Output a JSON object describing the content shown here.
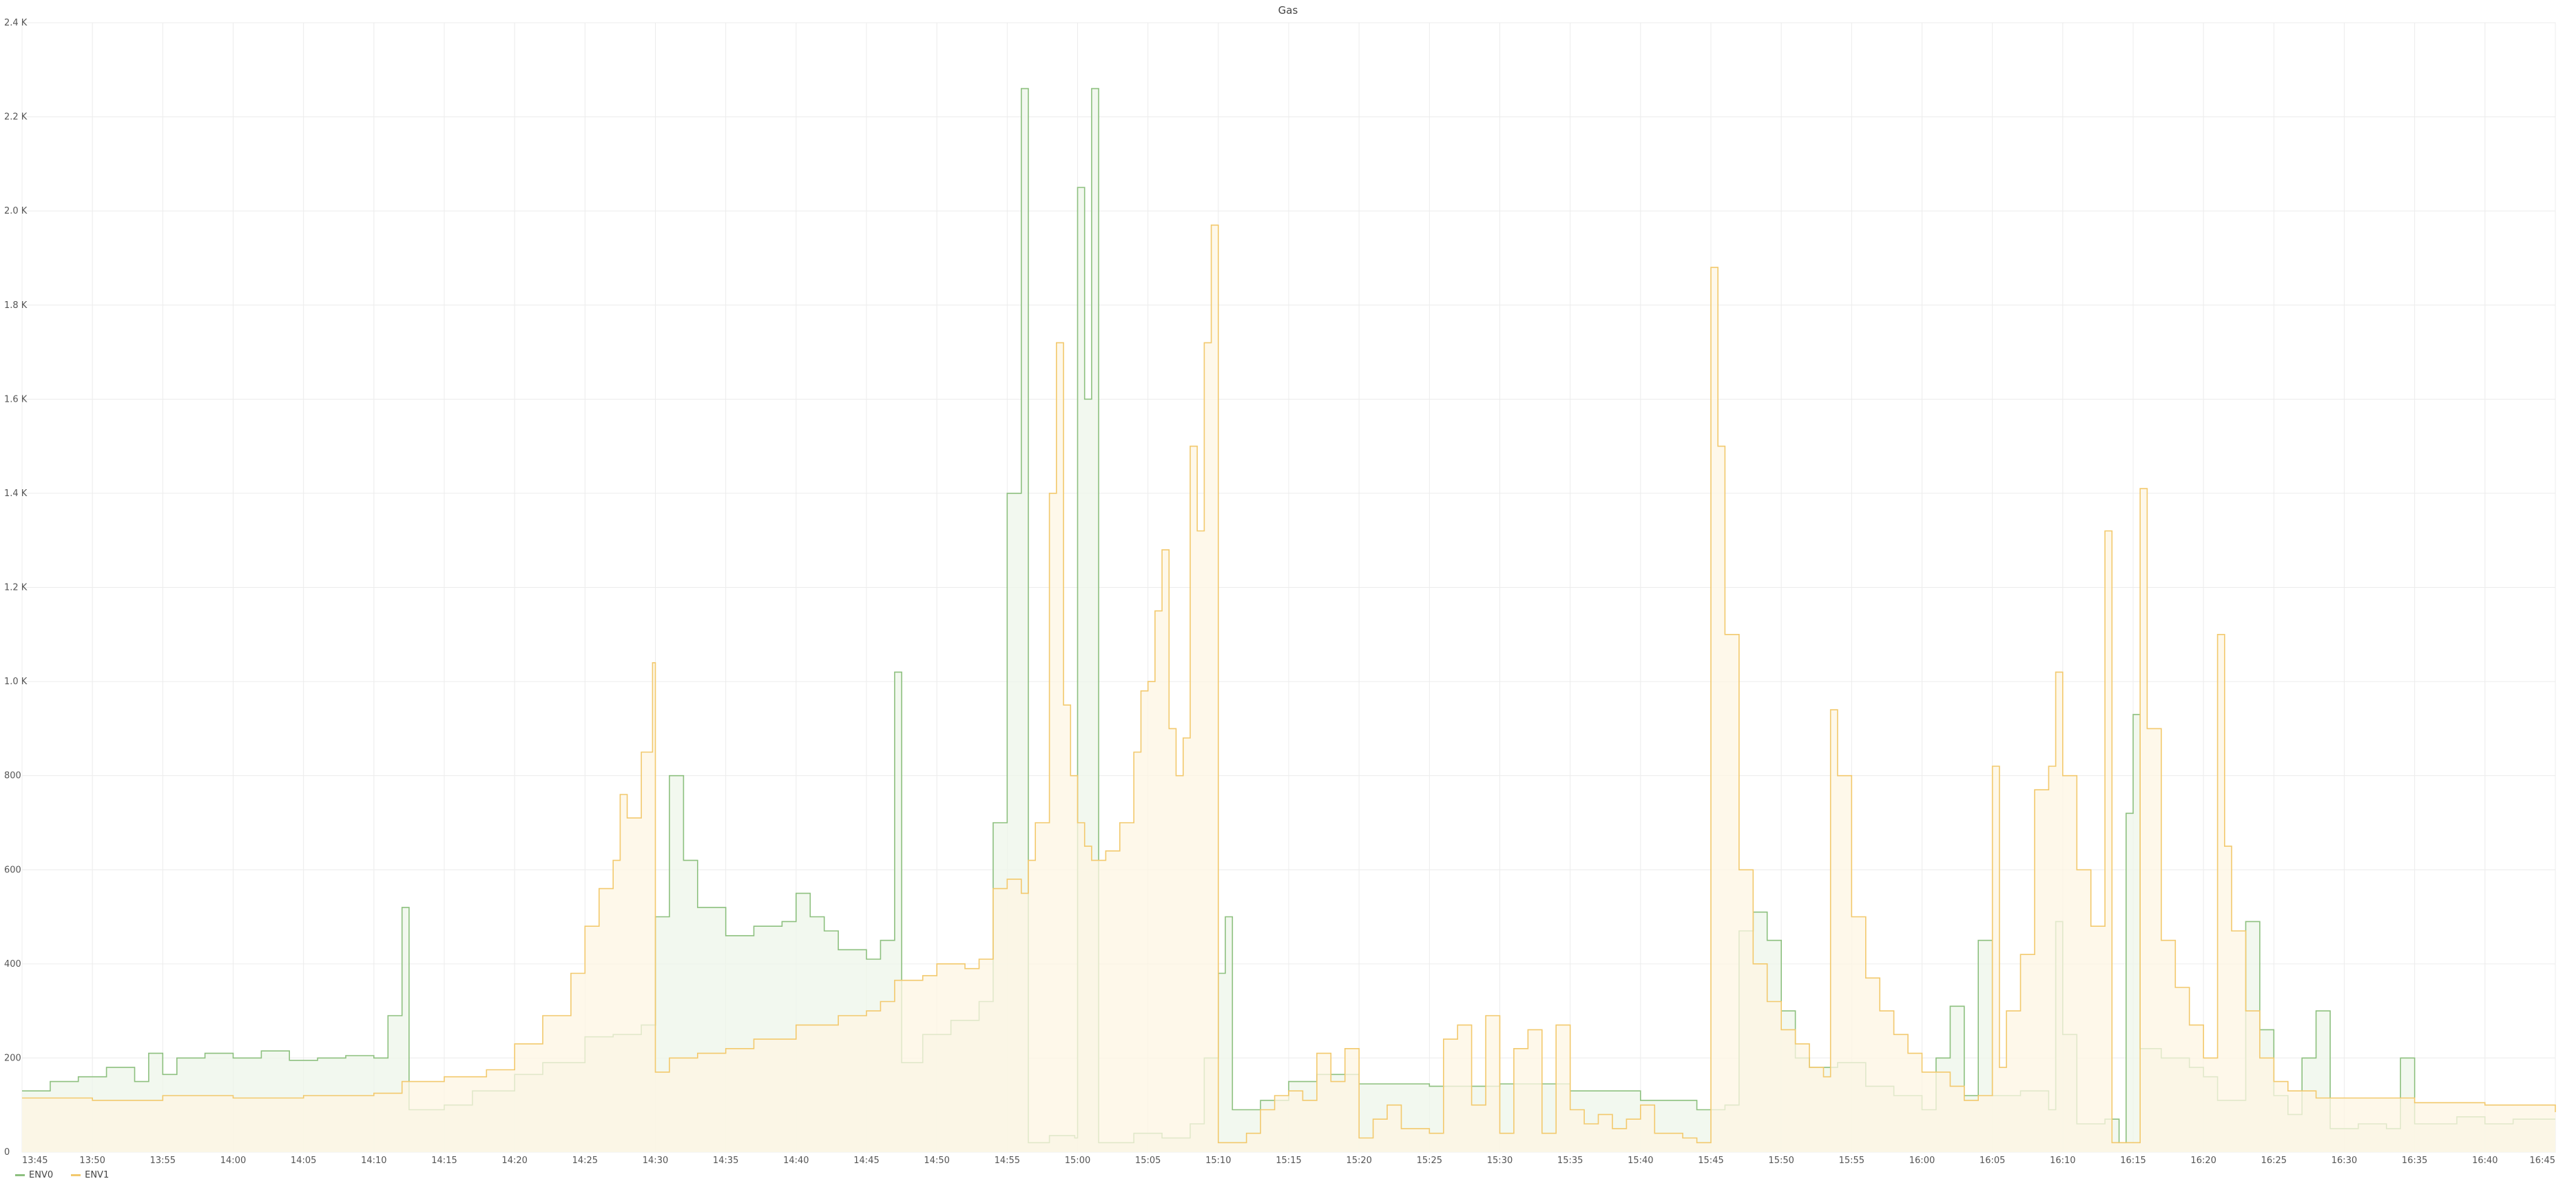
{
  "chart_data": {
    "type": "line",
    "title": "Gas",
    "xlabel": "",
    "ylabel": "",
    "ylim": [
      0,
      2400
    ],
    "yticks": [
      0,
      200,
      400,
      600,
      800,
      1000,
      1200,
      1400,
      1600,
      1800,
      2000,
      2200,
      2400
    ],
    "ytick_labels": [
      "0",
      "200",
      "400",
      "600",
      "800",
      "1.0 K",
      "1.2 K",
      "1.4 K",
      "1.6 K",
      "1.8 K",
      "2.0 K",
      "2.2 K",
      "2.4 K"
    ],
    "x_tick_labels": [
      "13:45",
      "13:50",
      "13:55",
      "14:00",
      "14:05",
      "14:10",
      "14:15",
      "14:20",
      "14:25",
      "14:30",
      "14:35",
      "14:40",
      "14:45",
      "14:50",
      "14:55",
      "15:00",
      "15:05",
      "15:10",
      "15:15",
      "15:20",
      "15:25",
      "15:30",
      "15:35",
      "15:40",
      "15:45",
      "15:50",
      "15:55",
      "16:00",
      "16:05",
      "16:10",
      "16:15",
      "16:20",
      "16:25",
      "16:30",
      "16:35",
      "16:40",
      "16:45"
    ],
    "grid": true,
    "legend_position": "bottom-left",
    "step": true,
    "series": [
      {
        "name": "ENV0",
        "color": "#8dc07f",
        "fill": "#eef5ea",
        "points": [
          [
            "13:45",
            130
          ],
          [
            "13:47",
            150
          ],
          [
            "13:49",
            160
          ],
          [
            "13:51",
            180
          ],
          [
            "13:53",
            150
          ],
          [
            "13:54",
            210
          ],
          [
            "13:55",
            165
          ],
          [
            "13:56",
            200
          ],
          [
            "13:58",
            210
          ],
          [
            "14:00",
            200
          ],
          [
            "14:02",
            215
          ],
          [
            "14:04",
            195
          ],
          [
            "14:06",
            200
          ],
          [
            "14:08",
            205
          ],
          [
            "14:10",
            200
          ],
          [
            "14:11",
            290
          ],
          [
            "14:12",
            520
          ],
          [
            "14:12.5",
            90
          ],
          [
            "14:15",
            100
          ],
          [
            "14:17",
            130
          ],
          [
            "14:20",
            165
          ],
          [
            "14:22",
            190
          ],
          [
            "14:25",
            245
          ],
          [
            "14:27",
            250
          ],
          [
            "14:29",
            270
          ],
          [
            "14:30",
            500
          ],
          [
            "14:31",
            800
          ],
          [
            "14:32",
            620
          ],
          [
            "14:33",
            520
          ],
          [
            "14:35",
            460
          ],
          [
            "14:37",
            480
          ],
          [
            "14:39",
            490
          ],
          [
            "14:40",
            550
          ],
          [
            "14:41",
            500
          ],
          [
            "14:42",
            470
          ],
          [
            "14:43",
            430
          ],
          [
            "14:45",
            410
          ],
          [
            "14:46",
            450
          ],
          [
            "14:47",
            1020
          ],
          [
            "14:47.5",
            190
          ],
          [
            "14:49",
            250
          ],
          [
            "14:51",
            280
          ],
          [
            "14:53",
            320
          ],
          [
            "14:54",
            700
          ],
          [
            "14:55",
            1400
          ],
          [
            "14:56",
            2260
          ],
          [
            "14:56.5",
            20
          ],
          [
            "14:58",
            35
          ],
          [
            "14:59.8",
            30
          ],
          [
            "15:00",
            2050
          ],
          [
            "15:00.5",
            1600
          ],
          [
            "15:01",
            2260
          ],
          [
            "15:01.5",
            20
          ],
          [
            "15:04",
            40
          ],
          [
            "15:06",
            30
          ],
          [
            "15:08",
            60
          ],
          [
            "15:09",
            200
          ],
          [
            "15:10",
            380
          ],
          [
            "15:10.5",
            500
          ],
          [
            "15:11",
            90
          ],
          [
            "15:13",
            110
          ],
          [
            "15:15",
            150
          ],
          [
            "15:17",
            165
          ],
          [
            "15:20",
            145
          ],
          [
            "15:25",
            140
          ],
          [
            "15:30",
            145
          ],
          [
            "15:35",
            130
          ],
          [
            "15:40",
            110
          ],
          [
            "15:44",
            90
          ],
          [
            "15:46",
            100
          ],
          [
            "15:47",
            470
          ],
          [
            "15:48",
            510
          ],
          [
            "15:49",
            450
          ],
          [
            "15:50",
            300
          ],
          [
            "15:51",
            200
          ],
          [
            "15:52",
            180
          ],
          [
            "15:54",
            190
          ],
          [
            "15:56",
            140
          ],
          [
            "15:58",
            120
          ],
          [
            "16:00",
            90
          ],
          [
            "16:01",
            200
          ],
          [
            "16:02",
            310
          ],
          [
            "16:03",
            120
          ],
          [
            "16:04",
            450
          ],
          [
            "16:05",
            120
          ],
          [
            "16:07",
            130
          ],
          [
            "16:09",
            90
          ],
          [
            "16:09.5",
            490
          ],
          [
            "16:10",
            250
          ],
          [
            "16:11",
            60
          ],
          [
            "16:13",
            70
          ],
          [
            "16:14",
            20
          ],
          [
            "16:14.5",
            720
          ],
          [
            "16:15",
            930
          ],
          [
            "16:15.5",
            220
          ],
          [
            "16:17",
            200
          ],
          [
            "16:19",
            180
          ],
          [
            "16:20",
            160
          ],
          [
            "16:21",
            110
          ],
          [
            "16:22",
            110
          ],
          [
            "16:23",
            490
          ],
          [
            "16:24",
            260
          ],
          [
            "16:25",
            120
          ],
          [
            "16:26",
            80
          ],
          [
            "16:27",
            200
          ],
          [
            "16:28",
            300
          ],
          [
            "16:29",
            50
          ],
          [
            "16:31",
            60
          ],
          [
            "16:33",
            50
          ],
          [
            "16:34",
            200
          ],
          [
            "16:35",
            60
          ],
          [
            "16:38",
            75
          ],
          [
            "16:40",
            60
          ],
          [
            "16:42",
            70
          ],
          [
            "16:45",
            70
          ]
        ]
      },
      {
        "name": "ENV1",
        "color": "#f2c96d",
        "fill": "#fdf6e3",
        "points": [
          [
            "13:45",
            115
          ],
          [
            "13:50",
            110
          ],
          [
            "13:55",
            120
          ],
          [
            "14:00",
            115
          ],
          [
            "14:05",
            120
          ],
          [
            "14:10",
            125
          ],
          [
            "14:12",
            150
          ],
          [
            "14:15",
            160
          ],
          [
            "14:18",
            175
          ],
          [
            "14:20",
            230
          ],
          [
            "14:22",
            290
          ],
          [
            "14:24",
            380
          ],
          [
            "14:25",
            480
          ],
          [
            "14:26",
            560
          ],
          [
            "14:27",
            620
          ],
          [
            "14:27.5",
            760
          ],
          [
            "14:28",
            710
          ],
          [
            "14:29",
            850
          ],
          [
            "14:29.8",
            1040
          ],
          [
            "14:30",
            170
          ],
          [
            "14:31",
            200
          ],
          [
            "14:33",
            210
          ],
          [
            "14:35",
            220
          ],
          [
            "14:37",
            240
          ],
          [
            "14:40",
            270
          ],
          [
            "14:43",
            290
          ],
          [
            "14:45",
            300
          ],
          [
            "14:46",
            320
          ],
          [
            "14:47",
            365
          ],
          [
            "14:49",
            375
          ],
          [
            "14:50",
            400
          ],
          [
            "14:52",
            390
          ],
          [
            "14:53",
            410
          ],
          [
            "14:54",
            560
          ],
          [
            "14:55",
            580
          ],
          [
            "14:56",
            550
          ],
          [
            "14:56.5",
            620
          ],
          [
            "14:57",
            700
          ],
          [
            "14:58",
            1400
          ],
          [
            "14:58.5",
            1720
          ],
          [
            "14:59",
            950
          ],
          [
            "14:59.5",
            800
          ],
          [
            "15:00",
            700
          ],
          [
            "15:00.5",
            650
          ],
          [
            "15:01",
            620
          ],
          [
            "15:02",
            640
          ],
          [
            "15:03",
            700
          ],
          [
            "15:04",
            850
          ],
          [
            "15:04.5",
            980
          ],
          [
            "15:05",
            1000
          ],
          [
            "15:05.5",
            1150
          ],
          [
            "15:06",
            1280
          ],
          [
            "15:06.5",
            900
          ],
          [
            "15:07",
            800
          ],
          [
            "15:07.5",
            880
          ],
          [
            "15:08",
            1500
          ],
          [
            "15:08.5",
            1320
          ],
          [
            "15:09",
            1720
          ],
          [
            "15:09.5",
            1970
          ],
          [
            "15:10",
            20
          ],
          [
            "15:11",
            20
          ],
          [
            "15:12",
            40
          ],
          [
            "15:13",
            90
          ],
          [
            "15:14",
            120
          ],
          [
            "15:15",
            130
          ],
          [
            "15:16",
            110
          ],
          [
            "15:17",
            210
          ],
          [
            "15:18",
            150
          ],
          [
            "15:19",
            220
          ],
          [
            "15:20",
            30
          ],
          [
            "15:21",
            70
          ],
          [
            "15:22",
            100
          ],
          [
            "15:23",
            50
          ],
          [
            "15:25",
            40
          ],
          [
            "15:26",
            240
          ],
          [
            "15:27",
            270
          ],
          [
            "15:28",
            100
          ],
          [
            "15:29",
            290
          ],
          [
            "15:30",
            40
          ],
          [
            "15:31",
            220
          ],
          [
            "15:32",
            260
          ],
          [
            "15:33",
            40
          ],
          [
            "15:34",
            270
          ],
          [
            "15:35",
            90
          ],
          [
            "15:36",
            60
          ],
          [
            "15:37",
            80
          ],
          [
            "15:38",
            50
          ],
          [
            "15:39",
            70
          ],
          [
            "15:40",
            100
          ],
          [
            "15:41",
            40
          ],
          [
            "15:43",
            30
          ],
          [
            "15:44",
            20
          ],
          [
            "15:45",
            1880
          ],
          [
            "15:45.5",
            1500
          ],
          [
            "15:46",
            1100
          ],
          [
            "15:47",
            600
          ],
          [
            "15:48",
            400
          ],
          [
            "15:49",
            320
          ],
          [
            "15:50",
            260
          ],
          [
            "15:51",
            230
          ],
          [
            "15:52",
            180
          ],
          [
            "15:53",
            160
          ],
          [
            "15:53.5",
            940
          ],
          [
            "15:54",
            800
          ],
          [
            "15:55",
            500
          ],
          [
            "15:56",
            370
          ],
          [
            "15:57",
            300
          ],
          [
            "15:58",
            250
          ],
          [
            "15:59",
            210
          ],
          [
            "16:00",
            170
          ],
          [
            "16:02",
            140
          ],
          [
            "16:03",
            110
          ],
          [
            "16:04",
            120
          ],
          [
            "16:05",
            820
          ],
          [
            "16:05.5",
            180
          ],
          [
            "16:06",
            300
          ],
          [
            "16:07",
            420
          ],
          [
            "16:08",
            770
          ],
          [
            "16:09",
            820
          ],
          [
            "16:09.5",
            1020
          ],
          [
            "16:10",
            800
          ],
          [
            "16:11",
            600
          ],
          [
            "16:12",
            480
          ],
          [
            "16:13",
            1320
          ],
          [
            "16:13.5",
            20
          ],
          [
            "16:14",
            20
          ],
          [
            "16:15",
            20
          ],
          [
            "16:15.5",
            1410
          ],
          [
            "16:16",
            900
          ],
          [
            "16:17",
            450
          ],
          [
            "16:18",
            350
          ],
          [
            "16:19",
            270
          ],
          [
            "16:20",
            200
          ],
          [
            "16:21",
            1100
          ],
          [
            "16:21.5",
            650
          ],
          [
            "16:22",
            470
          ],
          [
            "16:23",
            300
          ],
          [
            "16:24",
            200
          ],
          [
            "16:25",
            150
          ],
          [
            "16:26",
            130
          ],
          [
            "16:28",
            115
          ],
          [
            "16:30",
            115
          ],
          [
            "16:35",
            105
          ],
          [
            "16:40",
            100
          ],
          [
            "16:45",
            85
          ]
        ]
      }
    ]
  }
}
